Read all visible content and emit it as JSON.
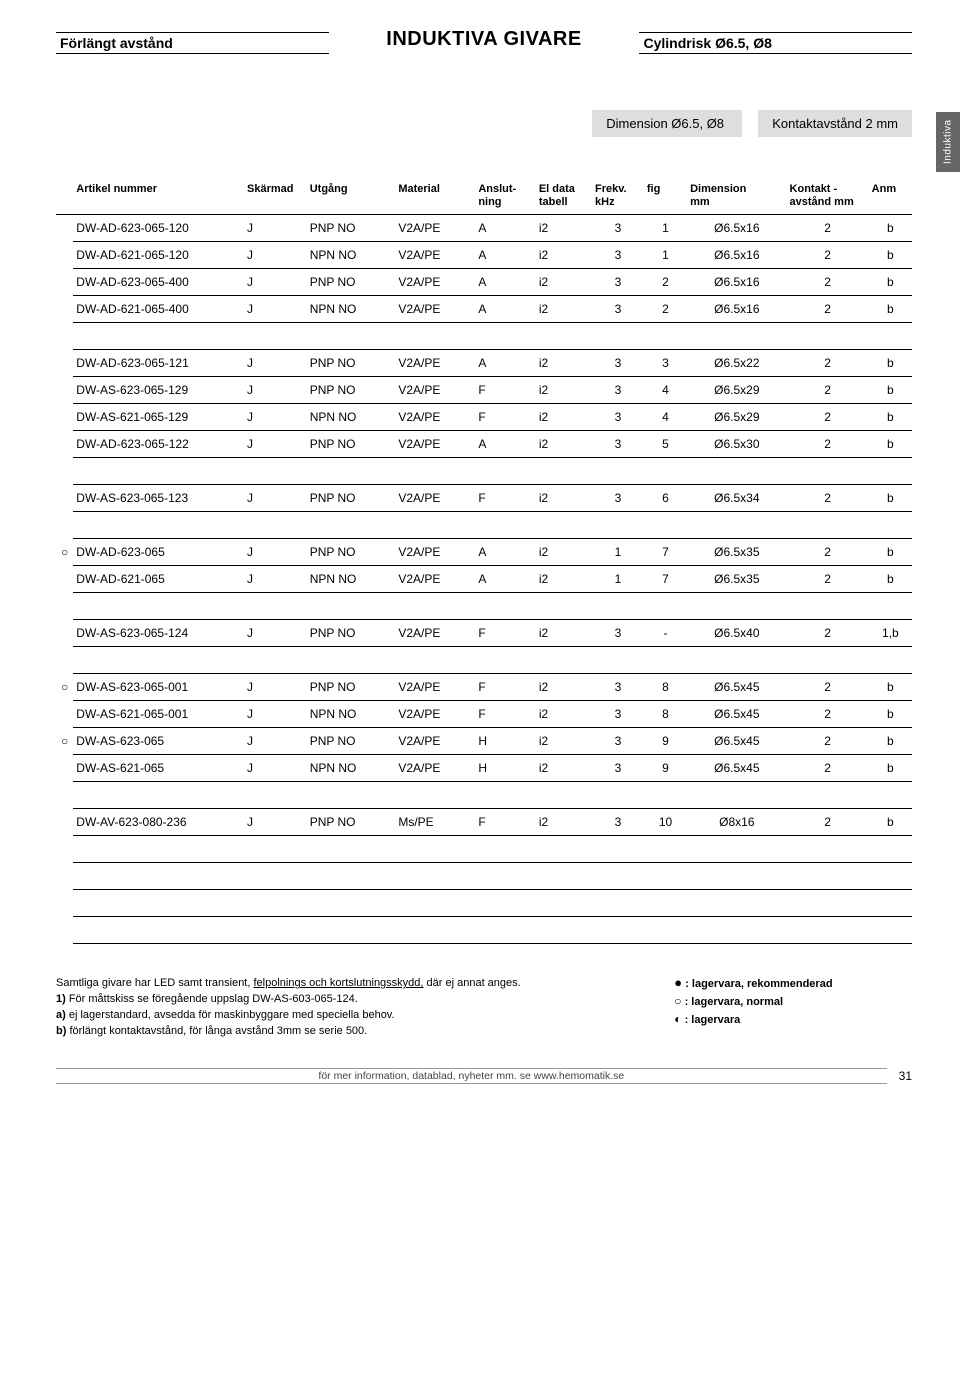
{
  "header": {
    "left": "Förlängt avstånd",
    "center": "INDUKTIVA GIVARE",
    "right": "Cylindrisk Ø6.5, Ø8"
  },
  "sidetab": "Induktiva",
  "subheader": {
    "dimension": "Dimension Ø6.5, Ø8",
    "kontakt": "Kontaktavstånd 2 mm"
  },
  "columns": {
    "art": "Artikel nummer",
    "sk": "Skärmad",
    "ut": "Utgång",
    "mat": "Material",
    "an1": "Anslut-",
    "an2": "ning",
    "el1": "El data",
    "el2": "tabell",
    "fr1": "Frekv.",
    "fr2": "kHz",
    "fig": "fig",
    "dim1": "Dimension",
    "dim2": "mm",
    "ka1": "Kontakt -",
    "ka2": "avstånd mm",
    "anm": "Anm"
  },
  "rows": [
    {
      "bullet": "",
      "art": "DW-AD-623-065-120",
      "sk": "J",
      "ut": "PNP NO",
      "mat": "V2A/PE",
      "an": "A",
      "el": "i2",
      "fr": "3",
      "fig": "1",
      "dim": "Ø6.5x16",
      "ka": "2",
      "anm": "b"
    },
    {
      "bullet": "",
      "art": "DW-AD-621-065-120",
      "sk": "J",
      "ut": "NPN NO",
      "mat": "V2A/PE",
      "an": "A",
      "el": "i2",
      "fr": "3",
      "fig": "1",
      "dim": "Ø6.5x16",
      "ka": "2",
      "anm": "b"
    },
    {
      "bullet": "",
      "art": "DW-AD-623-065-400",
      "sk": "J",
      "ut": "PNP NO",
      "mat": "V2A/PE",
      "an": "A",
      "el": "i2",
      "fr": "3",
      "fig": "2",
      "dim": "Ø6.5x16",
      "ka": "2",
      "anm": "b"
    },
    {
      "bullet": "",
      "art": "DW-AD-621-065-400",
      "sk": "J",
      "ut": "NPN NO",
      "mat": "V2A/PE",
      "an": "A",
      "el": "i2",
      "fr": "3",
      "fig": "2",
      "dim": "Ø6.5x16",
      "ka": "2",
      "anm": "b"
    },
    {
      "empty": true
    },
    {
      "bullet": "",
      "art": "DW-AD-623-065-121",
      "sk": "J",
      "ut": "PNP NO",
      "mat": "V2A/PE",
      "an": "A",
      "el": "i2",
      "fr": "3",
      "fig": "3",
      "dim": "Ø6.5x22",
      "ka": "2",
      "anm": "b"
    },
    {
      "bullet": "",
      "art": "DW-AS-623-065-129",
      "sk": "J",
      "ut": "PNP NO",
      "mat": "V2A/PE",
      "an": "F",
      "el": "i2",
      "fr": "3",
      "fig": "4",
      "dim": "Ø6.5x29",
      "ka": "2",
      "anm": "b"
    },
    {
      "bullet": "",
      "art": "DW-AS-621-065-129",
      "sk": "J",
      "ut": "NPN NO",
      "mat": "V2A/PE",
      "an": "F",
      "el": "i2",
      "fr": "3",
      "fig": "4",
      "dim": "Ø6.5x29",
      "ka": "2",
      "anm": "b"
    },
    {
      "bullet": "",
      "art": "DW-AD-623-065-122",
      "sk": "J",
      "ut": "PNP NO",
      "mat": "V2A/PE",
      "an": "A",
      "el": "i2",
      "fr": "3",
      "fig": "5",
      "dim": "Ø6.5x30",
      "ka": "2",
      "anm": "b"
    },
    {
      "empty": true
    },
    {
      "bullet": "",
      "art": "DW-AS-623-065-123",
      "sk": "J",
      "ut": "PNP NO",
      "mat": "V2A/PE",
      "an": "F",
      "el": "i2",
      "fr": "3",
      "fig": "6",
      "dim": "Ø6.5x34",
      "ka": "2",
      "anm": "b"
    },
    {
      "empty": true
    },
    {
      "bullet": "○",
      "art": "DW-AD-623-065",
      "sk": "J",
      "ut": "PNP NO",
      "mat": "V2A/PE",
      "an": "A",
      "el": "i2",
      "fr": "1",
      "fig": "7",
      "dim": "Ø6.5x35",
      "ka": "2",
      "anm": "b"
    },
    {
      "bullet": "",
      "art": "DW-AD-621-065",
      "sk": "J",
      "ut": "NPN NO",
      "mat": "V2A/PE",
      "an": "A",
      "el": "i2",
      "fr": "1",
      "fig": "7",
      "dim": "Ø6.5x35",
      "ka": "2",
      "anm": "b"
    },
    {
      "empty": true
    },
    {
      "bullet": "",
      "art": "DW-AS-623-065-124",
      "sk": "J",
      "ut": "PNP NO",
      "mat": "V2A/PE",
      "an": "F",
      "el": "i2",
      "fr": "3",
      "fig": "-",
      "dim": "Ø6.5x40",
      "ka": "2",
      "anm": "1,b"
    },
    {
      "empty": true
    },
    {
      "bullet": "○",
      "art": "DW-AS-623-065-001",
      "sk": "J",
      "ut": "PNP NO",
      "mat": "V2A/PE",
      "an": "F",
      "el": "i2",
      "fr": "3",
      "fig": "8",
      "dim": "Ø6.5x45",
      "ka": "2",
      "anm": "b"
    },
    {
      "bullet": "",
      "art": "DW-AS-621-065-001",
      "sk": "J",
      "ut": "NPN NO",
      "mat": "V2A/PE",
      "an": "F",
      "el": "i2",
      "fr": "3",
      "fig": "8",
      "dim": "Ø6.5x45",
      "ka": "2",
      "anm": "b"
    },
    {
      "bullet": "○",
      "art": "DW-AS-623-065",
      "sk": "J",
      "ut": "PNP NO",
      "mat": "V2A/PE",
      "an": "H",
      "el": "i2",
      "fr": "3",
      "fig": "9",
      "dim": "Ø6.5x45",
      "ka": "2",
      "anm": "b"
    },
    {
      "bullet": "",
      "art": "DW-AS-621-065",
      "sk": "J",
      "ut": "NPN NO",
      "mat": "V2A/PE",
      "an": "H",
      "el": "i2",
      "fr": "3",
      "fig": "9",
      "dim": "Ø6.5x45",
      "ka": "2",
      "anm": "b"
    },
    {
      "empty": true
    },
    {
      "bullet": "",
      "art": "DW-AV-623-080-236",
      "sk": "J",
      "ut": "PNP NO",
      "mat": "Ms/PE",
      "an": "F",
      "el": "i2",
      "fr": "3",
      "fig": "10",
      "dim": "Ø8x16",
      "ka": "2",
      "anm": "b"
    },
    {
      "empty": true
    },
    {
      "empty": true
    },
    {
      "empty": true
    },
    {
      "empty": true
    }
  ],
  "footnotes": {
    "intro": "Samtliga givare har LED samt transient, ",
    "intro_u": "felpolnings och kortslutningsskydd,",
    "intro_end": " där ej annat anges.",
    "n1": "1)  För måttskiss se föregående uppslag DW-AS-603-065-124.",
    "na": "a)  ej lagerstandard, avsedda för maskinbyggare med speciella behov.",
    "nb": "b)  förlängt kontaktavstånd, för långa avstånd 3mm se serie 500.",
    "legend1": " : lagervara, rekommenderad",
    "legend2": " : lagervara, normal",
    "legend3": " : lagervara"
  },
  "footer": {
    "text": "för mer information, datablad, nyheter mm. se www.hemomatik.se",
    "pageno": "31"
  }
}
